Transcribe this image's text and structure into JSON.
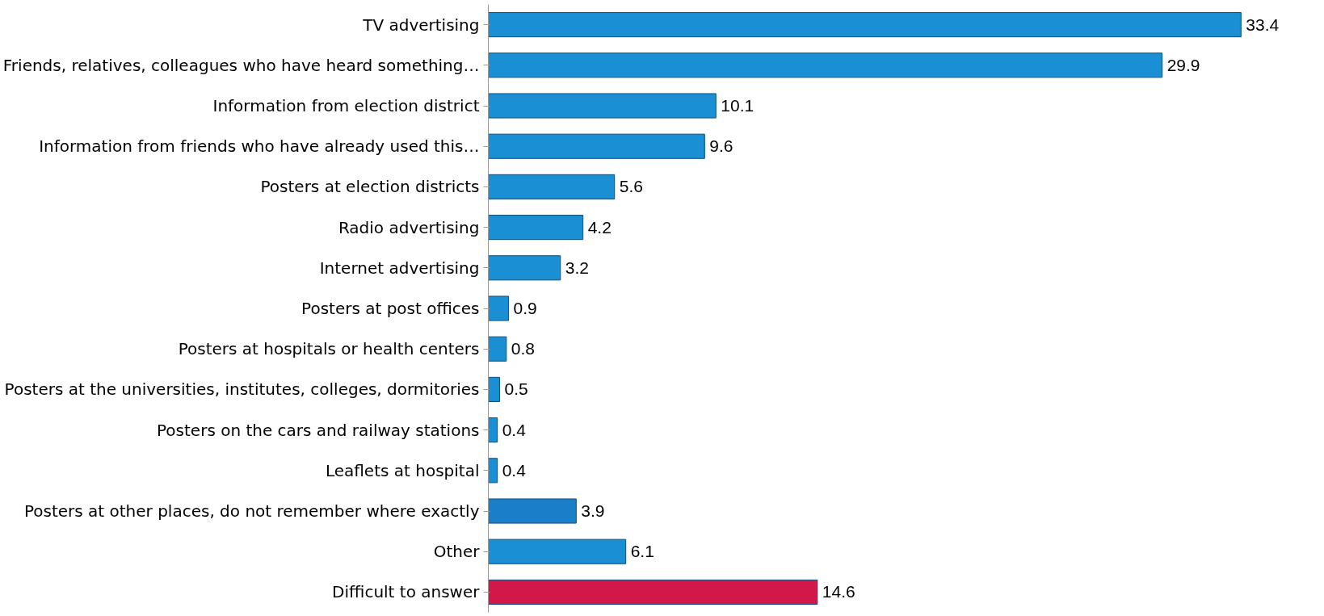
{
  "chart_data": {
    "type": "bar",
    "orientation": "horizontal",
    "relative": false,
    "data_labels": true,
    "categories": [
      "TV advertising",
      "Friends, relatives, colleagues who have heard something…",
      "Information from election district",
      "Information from friends who have already used this…",
      "Posters at election districts",
      "Radio advertising",
      "Internet advertising",
      "Posters at post offices",
      "Posters at hospitals or health centers",
      "Posters at the universities, institutes, colleges, dormitories",
      "Posters on the cars and railway stations",
      "Leaflets at hospital",
      "Posters at other places, do not remember where exactly",
      "Other",
      "Difficult to answer"
    ],
    "values": [
      33.4,
      29.9,
      10.1,
      9.6,
      5.6,
      4.2,
      3.2,
      0.9,
      0.8,
      0.5,
      0.4,
      0.4,
      3.9,
      6.1,
      14.6
    ],
    "colors": [
      "#1a8fd3",
      "#1a8fd3",
      "#1a8fd3",
      "#1a8fd3",
      "#1a8fd3",
      "#1a8fd3",
      "#1a8fd3",
      "#1a8fd3",
      "#1a8fd3",
      "#1a8fd3",
      "#1a8fd3",
      "#1a8fd3",
      "#1a7fc8",
      "#1a8fd3",
      "#d2174a"
    ]
  }
}
